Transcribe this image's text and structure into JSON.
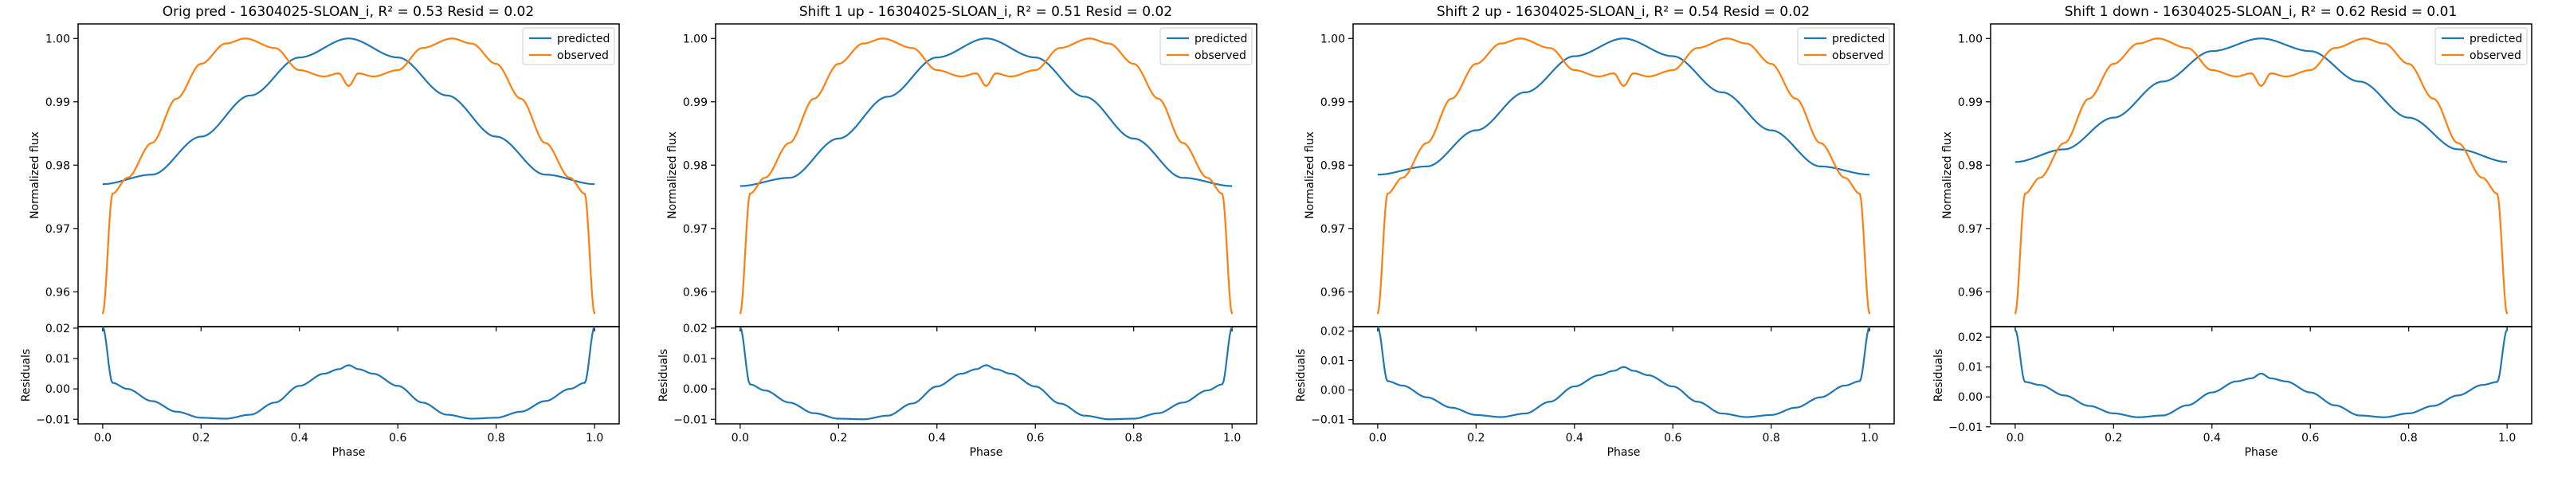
{
  "figure": {
    "panels": [
      {
        "title": "Orig pred - 16304025-SLOAN_i, R² = 0.53 Resid = 0.02"
      },
      {
        "title": "Shift 1 up - 16304025-SLOAN_i, R² = 0.51 Resid = 0.02"
      },
      {
        "title": "Shift 2 up - 16304025-SLOAN_i, R² = 0.54 Resid = 0.02"
      },
      {
        "title": "Shift 1 down - 16304025-SLOAN_i, R² = 0.62 Resid = 0.01"
      }
    ]
  },
  "colors": {
    "predicted": "#1f77b4",
    "observed": "#ff7f0e",
    "residuals": "#1f77b4"
  },
  "chart_data": [
    {
      "type": "line",
      "title": "Orig pred - 16304025-SLOAN_i, R² = 0.53 Resid = 0.02",
      "xlabel": "Phase",
      "ylabel": "Normalized flux",
      "resid_ylabel": "Residuals",
      "xlim": [
        -0.05,
        1.05
      ],
      "ylim": [
        0.9545,
        1.0023
      ],
      "resid_ylim": [
        -0.0115,
        0.0205
      ],
      "xticks": [
        "0.0",
        "0.2",
        "0.4",
        "0.6",
        "0.8",
        "1.0"
      ],
      "yticks": [
        "0.96",
        "0.97",
        "0.98",
        "0.99",
        "1.00"
      ],
      "resid_yticks": [
        "−0.01",
        "0.00",
        "0.01",
        "0.02"
      ],
      "legend": [
        "predicted",
        "observed"
      ],
      "legend_loc": "upper right",
      "series": [
        {
          "name": "predicted",
          "x": [
            0.0,
            0.1,
            0.2,
            0.3,
            0.4,
            0.5,
            0.6,
            0.7,
            0.8,
            0.9,
            1.0
          ],
          "values": [
            0.977,
            0.9785,
            0.9845,
            0.991,
            0.997,
            1.0,
            0.997,
            0.991,
            0.9845,
            0.9785,
            0.977
          ]
        },
        {
          "name": "observed",
          "x": [
            0.0,
            0.02,
            0.05,
            0.1,
            0.15,
            0.2,
            0.25,
            0.29,
            0.35,
            0.4,
            0.45,
            0.48,
            0.5,
            0.52,
            0.55,
            0.6,
            0.65,
            0.71,
            0.75,
            0.8,
            0.85,
            0.9,
            0.95,
            0.98,
            1.0
          ],
          "values": [
            0.9565,
            0.9755,
            0.978,
            0.9835,
            0.9905,
            0.996,
            0.9992,
            1.0,
            0.9985,
            0.995,
            0.994,
            0.9945,
            0.9925,
            0.9945,
            0.994,
            0.995,
            0.9985,
            1.0,
            0.9992,
            0.996,
            0.9905,
            0.9835,
            0.978,
            0.9755,
            0.9565
          ]
        }
      ],
      "residuals": {
        "x": [
          0.0,
          0.02,
          0.05,
          0.1,
          0.15,
          0.2,
          0.25,
          0.3,
          0.35,
          0.4,
          0.45,
          0.48,
          0.5,
          0.52,
          0.55,
          0.6,
          0.65,
          0.7,
          0.75,
          0.8,
          0.85,
          0.9,
          0.95,
          0.98,
          1.0
        ],
        "values": [
          0.0205,
          0.002,
          0.0,
          -0.004,
          -0.0075,
          -0.0095,
          -0.0098,
          -0.0085,
          -0.0045,
          0.001,
          0.005,
          0.0065,
          0.0078,
          0.0065,
          0.005,
          0.001,
          -0.0045,
          -0.0085,
          -0.0098,
          -0.0095,
          -0.0075,
          -0.004,
          0.0,
          0.002,
          0.0205
        ]
      }
    },
    {
      "type": "line",
      "title": "Shift 1 up - 16304025-SLOAN_i, R² = 0.51 Resid = 0.02",
      "xlabel": "Phase",
      "ylabel": "Normalized flux",
      "resid_ylabel": "Residuals",
      "xlim": [
        -0.05,
        1.05
      ],
      "ylim": [
        0.9545,
        1.0023
      ],
      "resid_ylim": [
        -0.0115,
        0.0205
      ],
      "xticks": [
        "0.0",
        "0.2",
        "0.4",
        "0.6",
        "0.8",
        "1.0"
      ],
      "yticks": [
        "0.96",
        "0.97",
        "0.98",
        "0.99",
        "1.00"
      ],
      "resid_yticks": [
        "−0.01",
        "0.00",
        "0.01",
        "0.02"
      ],
      "legend": [
        "predicted",
        "observed"
      ],
      "legend_loc": "upper right",
      "series": [
        {
          "name": "predicted",
          "x": [
            0.0,
            0.1,
            0.2,
            0.3,
            0.4,
            0.5,
            0.6,
            0.7,
            0.8,
            0.9,
            1.0
          ],
          "values": [
            0.9767,
            0.978,
            0.9842,
            0.9908,
            0.997,
            1.0,
            0.997,
            0.9908,
            0.9842,
            0.978,
            0.9767
          ]
        },
        {
          "name": "observed",
          "x": [
            0.0,
            0.02,
            0.05,
            0.1,
            0.15,
            0.2,
            0.25,
            0.29,
            0.35,
            0.4,
            0.45,
            0.48,
            0.5,
            0.52,
            0.55,
            0.6,
            0.65,
            0.71,
            0.75,
            0.8,
            0.85,
            0.9,
            0.95,
            0.98,
            1.0
          ],
          "values": [
            0.9565,
            0.9755,
            0.978,
            0.9835,
            0.9905,
            0.996,
            0.9992,
            1.0,
            0.9985,
            0.995,
            0.994,
            0.9945,
            0.9925,
            0.9945,
            0.994,
            0.995,
            0.9985,
            1.0,
            0.9992,
            0.996,
            0.9905,
            0.9835,
            0.978,
            0.9755,
            0.9565
          ]
        }
      ],
      "residuals": {
        "x": [
          0.0,
          0.02,
          0.05,
          0.1,
          0.15,
          0.2,
          0.25,
          0.3,
          0.35,
          0.4,
          0.45,
          0.48,
          0.5,
          0.52,
          0.55,
          0.6,
          0.65,
          0.7,
          0.75,
          0.8,
          0.85,
          0.9,
          0.95,
          0.98,
          1.0
        ],
        "values": [
          0.0203,
          0.0015,
          -0.0005,
          -0.0045,
          -0.008,
          -0.0098,
          -0.01,
          -0.0088,
          -0.0048,
          0.0008,
          0.005,
          0.0065,
          0.0078,
          0.0065,
          0.005,
          0.0008,
          -0.0048,
          -0.0088,
          -0.01,
          -0.0098,
          -0.008,
          -0.0045,
          -0.0005,
          0.0015,
          0.0203
        ]
      }
    },
    {
      "type": "line",
      "title": "Shift 2 up - 16304025-SLOAN_i, R² = 0.54 Resid = 0.02",
      "xlabel": "Phase",
      "ylabel": "Normalized flux",
      "resid_ylabel": "Residuals",
      "xlim": [
        -0.05,
        1.05
      ],
      "ylim": [
        0.9545,
        1.0023
      ],
      "resid_ylim": [
        -0.0115,
        0.0215
      ],
      "xticks": [
        "0.0",
        "0.2",
        "0.4",
        "0.6",
        "0.8",
        "1.0"
      ],
      "yticks": [
        "0.96",
        "0.97",
        "0.98",
        "0.99",
        "1.00"
      ],
      "resid_yticks": [
        "−0.01",
        "0.00",
        "0.01",
        "0.02"
      ],
      "legend": [
        "predicted",
        "observed"
      ],
      "legend_loc": "upper right",
      "series": [
        {
          "name": "predicted",
          "x": [
            0.0,
            0.1,
            0.2,
            0.3,
            0.4,
            0.5,
            0.6,
            0.7,
            0.8,
            0.9,
            1.0
          ],
          "values": [
            0.9785,
            0.9798,
            0.9855,
            0.9915,
            0.9972,
            1.0,
            0.9972,
            0.9915,
            0.9855,
            0.9798,
            0.9785
          ]
        },
        {
          "name": "observed",
          "x": [
            0.0,
            0.02,
            0.05,
            0.1,
            0.15,
            0.2,
            0.25,
            0.29,
            0.35,
            0.4,
            0.45,
            0.48,
            0.5,
            0.52,
            0.55,
            0.6,
            0.65,
            0.71,
            0.75,
            0.8,
            0.85,
            0.9,
            0.95,
            0.98,
            1.0
          ],
          "values": [
            0.9565,
            0.9755,
            0.978,
            0.9835,
            0.9905,
            0.996,
            0.9992,
            1.0,
            0.9985,
            0.995,
            0.994,
            0.9945,
            0.9925,
            0.9945,
            0.994,
            0.995,
            0.9985,
            1.0,
            0.9992,
            0.996,
            0.9905,
            0.9835,
            0.978,
            0.9755,
            0.9565
          ]
        }
      ],
      "residuals": {
        "x": [
          0.0,
          0.02,
          0.05,
          0.1,
          0.15,
          0.2,
          0.25,
          0.3,
          0.35,
          0.4,
          0.45,
          0.48,
          0.5,
          0.52,
          0.55,
          0.6,
          0.65,
          0.7,
          0.75,
          0.8,
          0.85,
          0.9,
          0.95,
          0.98,
          1.0
        ],
        "values": [
          0.0215,
          0.003,
          0.0015,
          -0.0025,
          -0.006,
          -0.0085,
          -0.0092,
          -0.008,
          -0.004,
          0.0012,
          0.005,
          0.0065,
          0.0078,
          0.0065,
          0.005,
          0.0012,
          -0.004,
          -0.008,
          -0.0092,
          -0.0085,
          -0.006,
          -0.0025,
          0.0015,
          0.003,
          0.0215
        ]
      }
    },
    {
      "type": "line",
      "title": "Shift 1 down - 16304025-SLOAN_i, R² = 0.62 Resid = 0.01",
      "xlabel": "Phase",
      "ylabel": "Normalized flux",
      "resid_ylabel": "Residuals",
      "xlim": [
        -0.05,
        1.05
      ],
      "ylim": [
        0.9545,
        1.0023
      ],
      "resid_ylim": [
        -0.009,
        0.0235
      ],
      "xticks": [
        "0.0",
        "0.2",
        "0.4",
        "0.6",
        "0.8",
        "1.0"
      ],
      "yticks": [
        "0.96",
        "0.97",
        "0.98",
        "0.99",
        "1.00"
      ],
      "resid_yticks": [
        "−0.01",
        "0.00",
        "0.01",
        "0.02"
      ],
      "legend": [
        "predicted",
        "observed"
      ],
      "legend_loc": "upper right",
      "series": [
        {
          "name": "predicted",
          "x": [
            0.0,
            0.1,
            0.2,
            0.3,
            0.4,
            0.5,
            0.6,
            0.7,
            0.8,
            0.9,
            1.0
          ],
          "values": [
            0.9805,
            0.9825,
            0.9875,
            0.9932,
            0.998,
            1.0,
            0.998,
            0.9932,
            0.9875,
            0.9825,
            0.9805
          ]
        },
        {
          "name": "observed",
          "x": [
            0.0,
            0.02,
            0.05,
            0.1,
            0.15,
            0.2,
            0.25,
            0.29,
            0.35,
            0.4,
            0.45,
            0.48,
            0.5,
            0.52,
            0.55,
            0.6,
            0.65,
            0.71,
            0.75,
            0.8,
            0.85,
            0.9,
            0.95,
            0.98,
            1.0
          ],
          "values": [
            0.9565,
            0.9755,
            0.978,
            0.9835,
            0.9905,
            0.996,
            0.9992,
            1.0,
            0.9985,
            0.995,
            0.994,
            0.9945,
            0.9925,
            0.9945,
            0.994,
            0.995,
            0.9985,
            1.0,
            0.9992,
            0.996,
            0.9905,
            0.9835,
            0.978,
            0.9755,
            0.9565
          ]
        }
      ],
      "residuals": {
        "x": [
          0.0,
          0.02,
          0.05,
          0.1,
          0.15,
          0.2,
          0.25,
          0.3,
          0.35,
          0.4,
          0.45,
          0.48,
          0.5,
          0.52,
          0.55,
          0.6,
          0.65,
          0.7,
          0.75,
          0.8,
          0.85,
          0.9,
          0.95,
          0.98,
          1.0
        ],
        "values": [
          0.0225,
          0.005,
          0.004,
          0.0005,
          -0.003,
          -0.0055,
          -0.0068,
          -0.0062,
          -0.0028,
          0.0015,
          0.0052,
          0.0062,
          0.0078,
          0.0062,
          0.0052,
          0.0015,
          -0.0028,
          -0.0062,
          -0.0068,
          -0.0055,
          -0.003,
          0.0005,
          0.004,
          0.005,
          0.0225
        ]
      }
    }
  ]
}
